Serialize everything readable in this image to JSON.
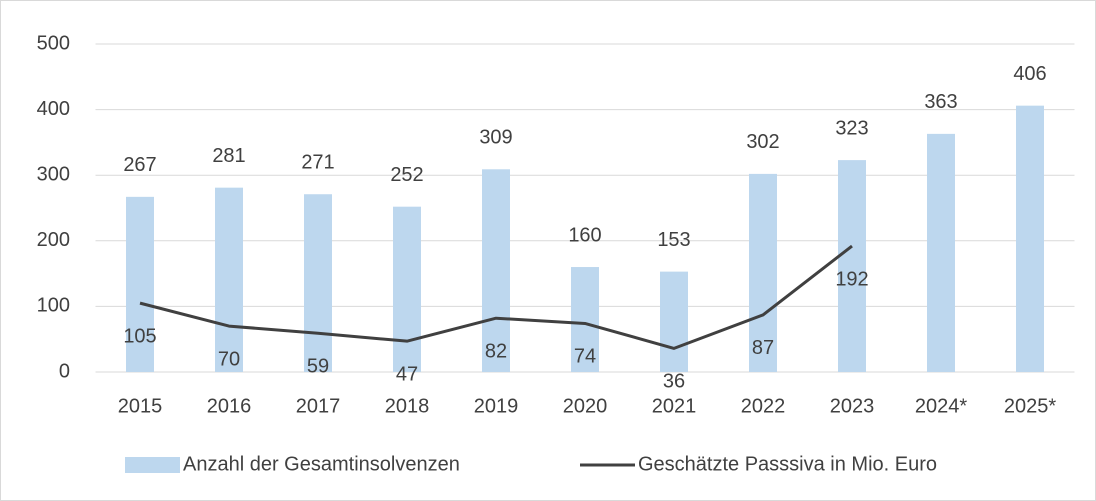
{
  "chart_data": {
    "type": "bar",
    "categories": [
      "2015",
      "2016",
      "2017",
      "2018",
      "2019",
      "2020",
      "2021",
      "2022",
      "2023",
      "2024*",
      "2025*"
    ],
    "series": [
      {
        "name": "Anzahl der Gesamtinsolvenzen",
        "type": "bar",
        "color": "#bdd7ee",
        "values": [
          267,
          281,
          271,
          252,
          309,
          160,
          153,
          302,
          323,
          363,
          406
        ]
      },
      {
        "name": "Geschätzte Passsiva in Mio. Euro",
        "type": "line",
        "color": "#404040",
        "values": [
          105,
          70,
          59,
          47,
          82,
          74,
          36,
          87,
          192,
          null,
          null
        ]
      }
    ],
    "ylim": [
      0,
      500
    ],
    "yticks": [
      0,
      100,
      200,
      300,
      400,
      500
    ],
    "grid": true,
    "legend": "bottom"
  }
}
